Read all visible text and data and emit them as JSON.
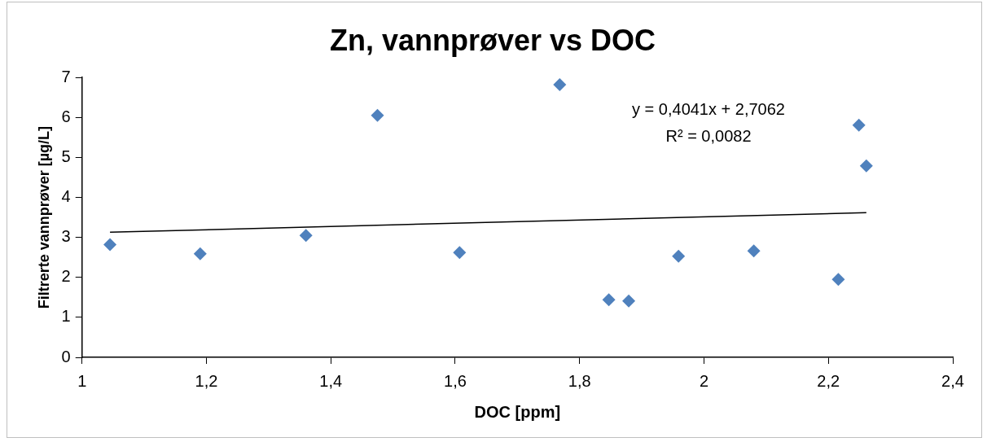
{
  "chart_data": {
    "type": "scatter",
    "title": "Zn, vannprøver vs DOC",
    "xlabel": "DOC [ppm]",
    "ylabel": "Filtrerte vannprøver [µg/L]",
    "xlim": [
      1,
      2.4
    ],
    "xticks": [
      1,
      {
        "value": 1.2,
        "label": "1,2"
      },
      {
        "value": 1.4,
        "label": "1,4"
      },
      {
        "value": 1.6,
        "label": "1,6"
      },
      {
        "value": 1.8,
        "label": "1,8"
      },
      2,
      {
        "value": 2.2,
        "label": "2,2"
      },
      {
        "value": 2.4,
        "label": "2,4"
      }
    ],
    "ylim": [
      0,
      7
    ],
    "yticks": [
      0,
      1,
      2,
      3,
      4,
      5,
      6,
      7
    ],
    "grid": false,
    "legend": false,
    "marker": "diamond",
    "series": [
      {
        "color": "#4f81bd",
        "x": [
          1.045,
          1.19,
          1.36,
          1.475,
          1.607,
          1.768,
          1.847,
          1.879,
          1.959,
          2.08,
          2.216,
          2.249,
          2.261
        ],
        "values": [
          2.82,
          2.59,
          3.05,
          6.05,
          2.62,
          6.82,
          1.44,
          1.41,
          2.53,
          2.66,
          1.95,
          5.81,
          4.79
        ]
      },
      {
        "type": "line",
        "color": "#000000",
        "x": [
          1.045,
          2.261
        ],
        "values": [
          3.13,
          3.62
        ],
        "marker": "none"
      }
    ],
    "annotations": [
      "y = 0,4041x + 2,7062",
      "R² = 0,0082"
    ]
  }
}
